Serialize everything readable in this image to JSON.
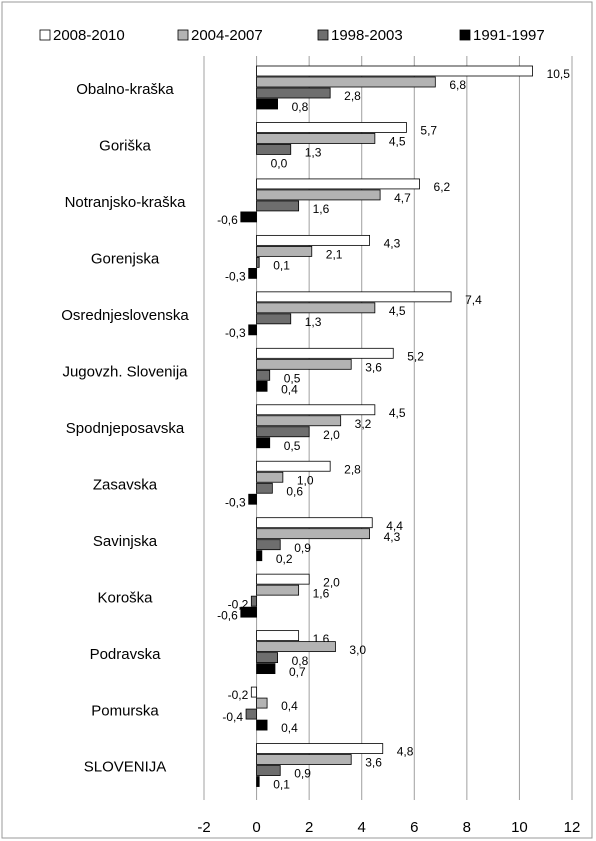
{
  "chart_data": {
    "type": "hbar",
    "categories": [
      "Obalno-kraška",
      "Goriška",
      "Notranjsko-kraška",
      "Gorenjska",
      "Osrednjeslovenska",
      "Jugovzh. Slovenija",
      "Spodnjeposavska",
      "Zasavska",
      "Savinjska",
      "Koroška",
      "Podravska",
      "Pomurska",
      "SLOVENIJA"
    ],
    "series": [
      {
        "name": "2008-2010",
        "color": "#ffffff",
        "values": [
          10.5,
          5.7,
          6.2,
          4.3,
          7.4,
          5.2,
          4.5,
          2.8,
          4.4,
          2.0,
          1.6,
          -0.2,
          4.8
        ],
        "value_labels": [
          "10,5",
          "5,7",
          "6,2",
          "4,3",
          "7,4",
          "5,2",
          "4,5",
          "2,8",
          "4,4",
          "2,0",
          "1,6",
          "-0,2",
          "4,8"
        ]
      },
      {
        "name": "2004-2007",
        "color": "#b3b3b3",
        "values": [
          6.8,
          4.5,
          4.7,
          2.1,
          4.5,
          3.6,
          3.2,
          1.0,
          4.3,
          1.6,
          3.0,
          0.4,
          3.6
        ],
        "value_labels": [
          "6,8",
          "4,5",
          "4,7",
          "2,1",
          "4,5",
          "3,6",
          "3,2",
          "1,0",
          "4,3",
          "1,6",
          "3,0",
          "0,4",
          "3,6"
        ]
      },
      {
        "name": "1998-2003",
        "color": "#6e6e6e",
        "values": [
          2.8,
          1.3,
          1.6,
          0.1,
          1.3,
          0.5,
          2.0,
          0.6,
          0.9,
          -0.2,
          0.8,
          -0.4,
          0.9
        ],
        "value_labels": [
          "2,8",
          "1,3",
          "1,6",
          "0,1",
          "1,3",
          "0,5",
          "2,0",
          "0,6",
          "0,9",
          "-0,2",
          "0,8",
          "-0,4",
          "0,9"
        ]
      },
      {
        "name": "1991-1997",
        "color": "#000000",
        "values": [
          0.8,
          0.0,
          -0.6,
          -0.3,
          -0.3,
          0.4,
          0.5,
          -0.3,
          0.2,
          -0.6,
          0.7,
          0.4,
          0.1
        ],
        "value_labels": [
          "0,8",
          "0,0",
          "-0,6",
          "-0,3",
          "-0,3",
          "0,4",
          "0,5",
          "-0,3",
          "0,2",
          "-0,6",
          "0,7",
          "0,4",
          "0,1"
        ]
      }
    ],
    "xlim": [
      -2,
      12
    ],
    "xticks": [
      -2,
      0,
      2,
      4,
      6,
      8,
      10,
      12
    ],
    "grid": true,
    "legend": "top"
  }
}
